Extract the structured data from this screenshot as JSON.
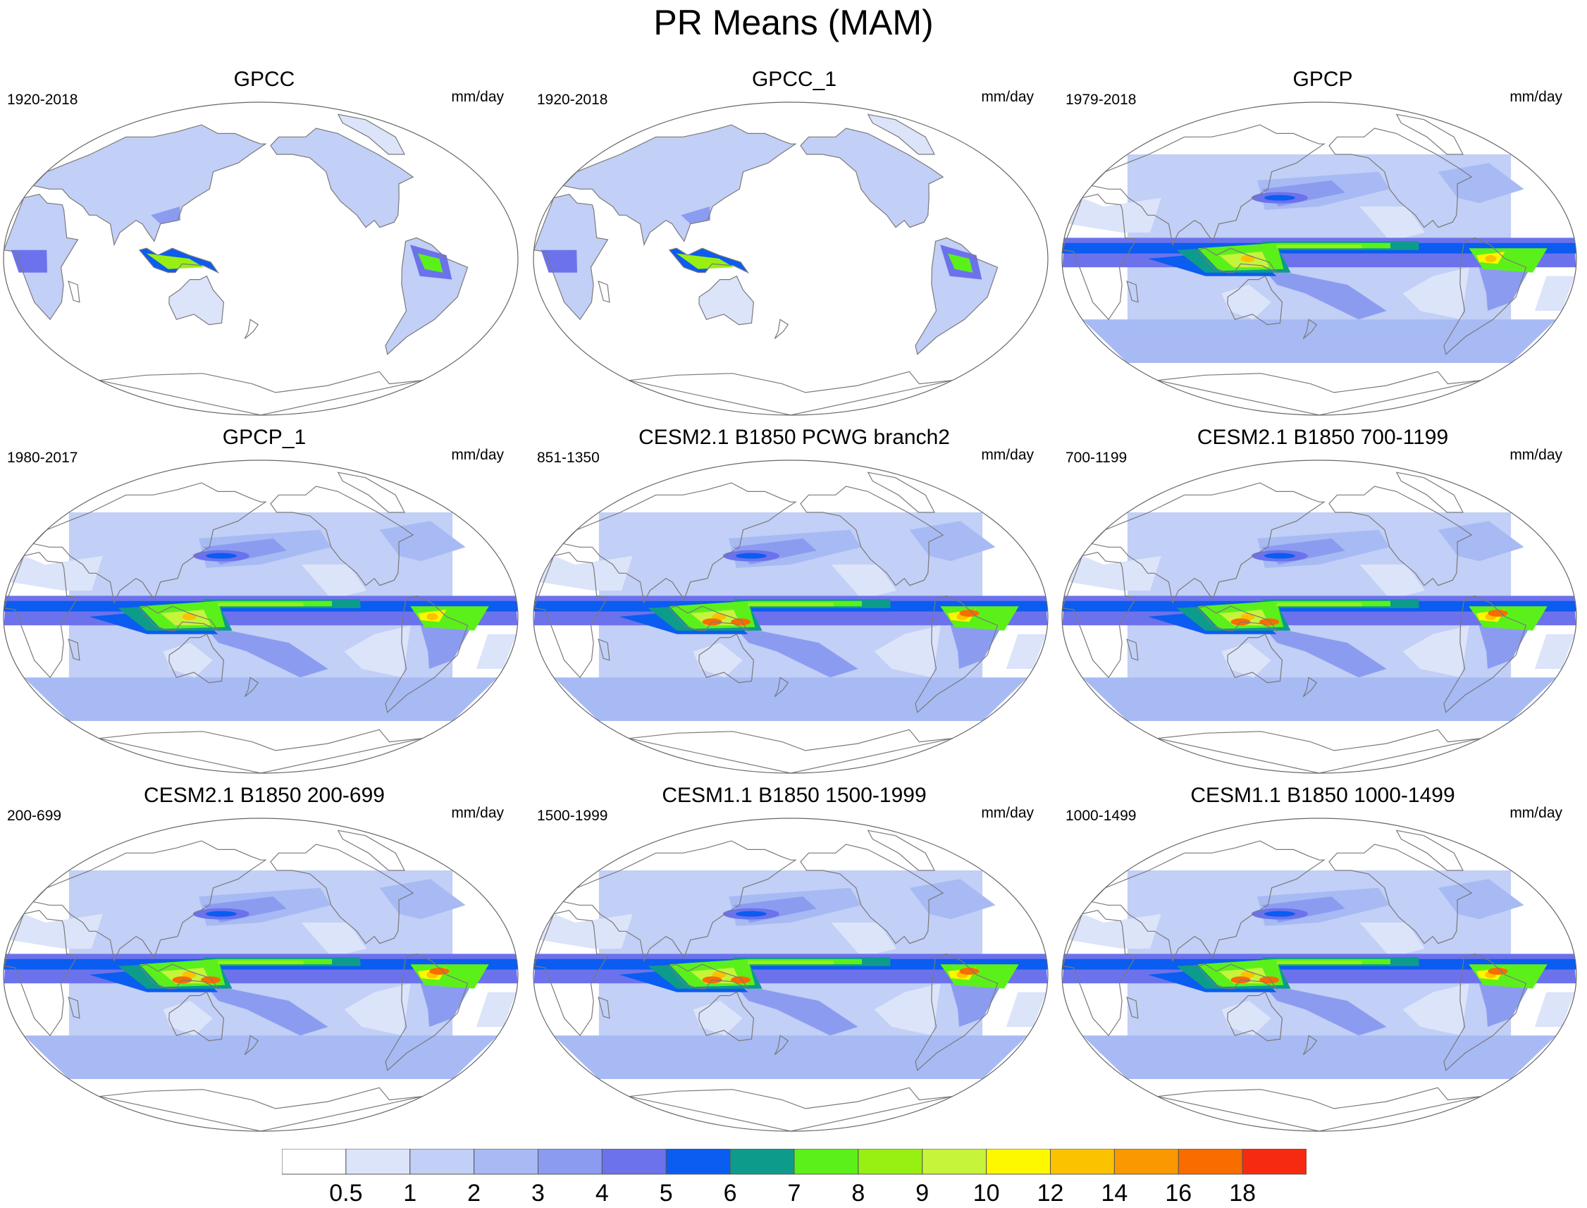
{
  "title": "PR Means (MAM)",
  "units": "mm/day",
  "panels": [
    {
      "title": "GPCC",
      "period": "1920-2018",
      "kind": "land"
    },
    {
      "title": "GPCC_1",
      "period": "1920-2018",
      "kind": "land"
    },
    {
      "title": "GPCP",
      "period": "1979-2018",
      "kind": "obs"
    },
    {
      "title": "GPCP_1",
      "period": "1980-2017",
      "kind": "obs"
    },
    {
      "title": "CESM2.1 B1850 PCWG branch2",
      "period": "851-1350",
      "kind": "model"
    },
    {
      "title": "CESM2.1 B1850 700-1199",
      "period": "700-1199",
      "kind": "model"
    },
    {
      "title": "CESM2.1 B1850 200-699",
      "period": "200-699",
      "kind": "model"
    },
    {
      "title": "CESM1.1 B1850 1500-1999",
      "period": "1500-1999",
      "kind": "model"
    },
    {
      "title": "CESM1.1 B1850 1000-1499",
      "period": "1000-1499",
      "kind": "model"
    }
  ],
  "colorbar": {
    "levels": [
      "0.5",
      "1",
      "2",
      "3",
      "4",
      "5",
      "6",
      "7",
      "8",
      "9",
      "10",
      "12",
      "14",
      "16",
      "18"
    ],
    "colors": [
      "#ffffff",
      "#dce4fa",
      "#c2cff6",
      "#a7baf4",
      "#8b9cf0",
      "#6c72ec",
      "#0b5cf0",
      "#0d9b8c",
      "#5cf01a",
      "#98f012",
      "#c6f43a",
      "#fdf700",
      "#fbc200",
      "#f99800",
      "#f86c00",
      "#f62a10"
    ]
  }
}
